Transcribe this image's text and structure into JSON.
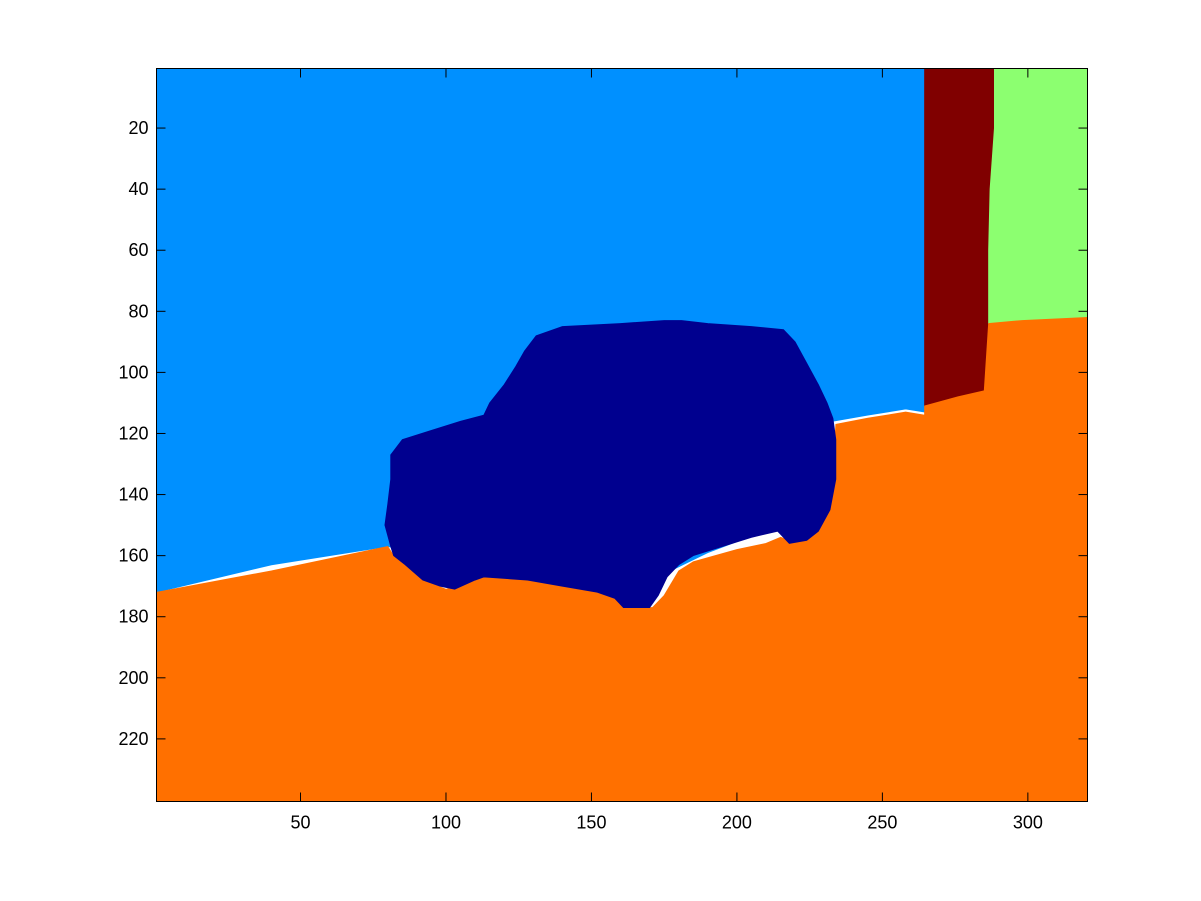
{
  "chart_data": {
    "type": "heatmap",
    "title": "",
    "xlabel": "",
    "ylabel": "",
    "xlim": [
      0.5,
      320.5
    ],
    "ylim": [
      0.5,
      240.5
    ],
    "y_reversed": true,
    "grid": false,
    "x_ticks": [
      50,
      100,
      150,
      200,
      250,
      300
    ],
    "x_tick_labels": [
      "50",
      "100",
      "150",
      "200",
      "250",
      "300"
    ],
    "y_ticks": [
      20,
      40,
      60,
      80,
      100,
      120,
      140,
      160,
      180,
      200,
      220
    ],
    "y_tick_labels": [
      "20",
      "40",
      "60",
      "80",
      "100",
      "120",
      "140",
      "160",
      "180",
      "200",
      "220"
    ],
    "colormap": "jet",
    "regions": [
      {
        "label_color": "#0090FF",
        "polygon": [
          [
            0.5,
            0.5
          ],
          [
            264.5,
            0.5
          ],
          [
            264.5,
            113
          ],
          [
            258,
            112
          ],
          [
            245,
            114
          ],
          [
            233,
            116
          ],
          [
            230,
            124
          ],
          [
            224,
            143
          ],
          [
            215,
            150
          ],
          [
            190,
            159
          ],
          [
            162,
            172
          ],
          [
            120,
            165
          ],
          [
            80,
            157
          ],
          [
            40,
            163
          ],
          [
            0.5,
            172
          ]
        ]
      },
      {
        "label_color": "#800000",
        "polygon": [
          [
            264.5,
            0.5
          ],
          [
            288.5,
            0.5
          ],
          [
            288.5,
            20
          ],
          [
            287,
            40
          ],
          [
            286.5,
            80
          ],
          [
            286.5,
            101
          ],
          [
            285,
            106
          ],
          [
            276,
            108
          ],
          [
            264.5,
            111
          ]
        ]
      },
      {
        "label_color": "#8CFF70",
        "polygon": [
          [
            288.5,
            0.5
          ],
          [
            320.5,
            0.5
          ],
          [
            320.5,
            82
          ],
          [
            298,
            83
          ],
          [
            286.5,
            84
          ],
          [
            286.5,
            60
          ],
          [
            287,
            40
          ],
          [
            288.5,
            20
          ]
        ]
      },
      {
        "label_color": "#FF7000",
        "polygon": [
          [
            0.5,
            172
          ],
          [
            40,
            165
          ],
          [
            80,
            157
          ],
          [
            82,
            160
          ],
          [
            87,
            164
          ],
          [
            92,
            168
          ],
          [
            100,
            171
          ],
          [
            110,
            168
          ],
          [
            115,
            166
          ],
          [
            130,
            168
          ],
          [
            145,
            171
          ],
          [
            157,
            172
          ],
          [
            161,
            177
          ],
          [
            171,
            177
          ],
          [
            175,
            173
          ],
          [
            180,
            165
          ],
          [
            185,
            162
          ],
          [
            200,
            158
          ],
          [
            210,
            156
          ],
          [
            215,
            154
          ],
          [
            218,
            155
          ],
          [
            225,
            154
          ],
          [
            227,
            150
          ],
          [
            229,
            145
          ],
          [
            231,
            140
          ],
          [
            233,
            133
          ],
          [
            234,
            117
          ],
          [
            245,
            115
          ],
          [
            258,
            113
          ],
          [
            264.5,
            114
          ],
          [
            264.5,
            111
          ],
          [
            276,
            108
          ],
          [
            285,
            106
          ],
          [
            286.5,
            84
          ],
          [
            298,
            83
          ],
          [
            320.5,
            82
          ],
          [
            320.5,
            240.5
          ],
          [
            0.5,
            240.5
          ]
        ]
      },
      {
        "label_color": "#00008F",
        "polygon": [
          [
            131,
            88
          ],
          [
            140,
            85
          ],
          [
            160,
            84
          ],
          [
            175,
            83
          ],
          [
            181,
            83
          ],
          [
            190,
            84
          ],
          [
            205,
            85
          ],
          [
            216,
            86
          ],
          [
            220,
            90
          ],
          [
            224,
            97
          ],
          [
            228,
            104
          ],
          [
            231,
            110
          ],
          [
            233,
            115
          ],
          [
            234,
            122
          ],
          [
            234,
            135
          ],
          [
            232,
            145
          ],
          [
            228,
            152
          ],
          [
            224,
            155
          ],
          [
            218,
            156
          ],
          [
            214,
            152
          ],
          [
            205,
            154
          ],
          [
            195,
            157
          ],
          [
            185,
            160
          ],
          [
            180,
            163
          ],
          [
            176,
            167
          ],
          [
            173,
            173
          ],
          [
            170,
            177
          ],
          [
            161,
            177
          ],
          [
            158,
            174
          ],
          [
            152,
            172
          ],
          [
            140,
            170
          ],
          [
            128,
            168
          ],
          [
            113,
            167
          ],
          [
            110,
            168
          ],
          [
            103,
            171
          ],
          [
            98,
            170
          ],
          [
            92,
            168
          ],
          [
            86,
            163
          ],
          [
            82,
            160
          ],
          [
            81,
            157
          ],
          [
            79,
            150
          ],
          [
            80,
            143
          ],
          [
            81,
            135
          ],
          [
            81,
            127
          ],
          [
            85,
            122
          ],
          [
            95,
            119
          ],
          [
            105,
            116
          ],
          [
            113,
            114
          ],
          [
            115,
            110
          ],
          [
            120,
            104
          ],
          [
            124,
            98
          ],
          [
            127,
            93
          ]
        ]
      }
    ]
  }
}
